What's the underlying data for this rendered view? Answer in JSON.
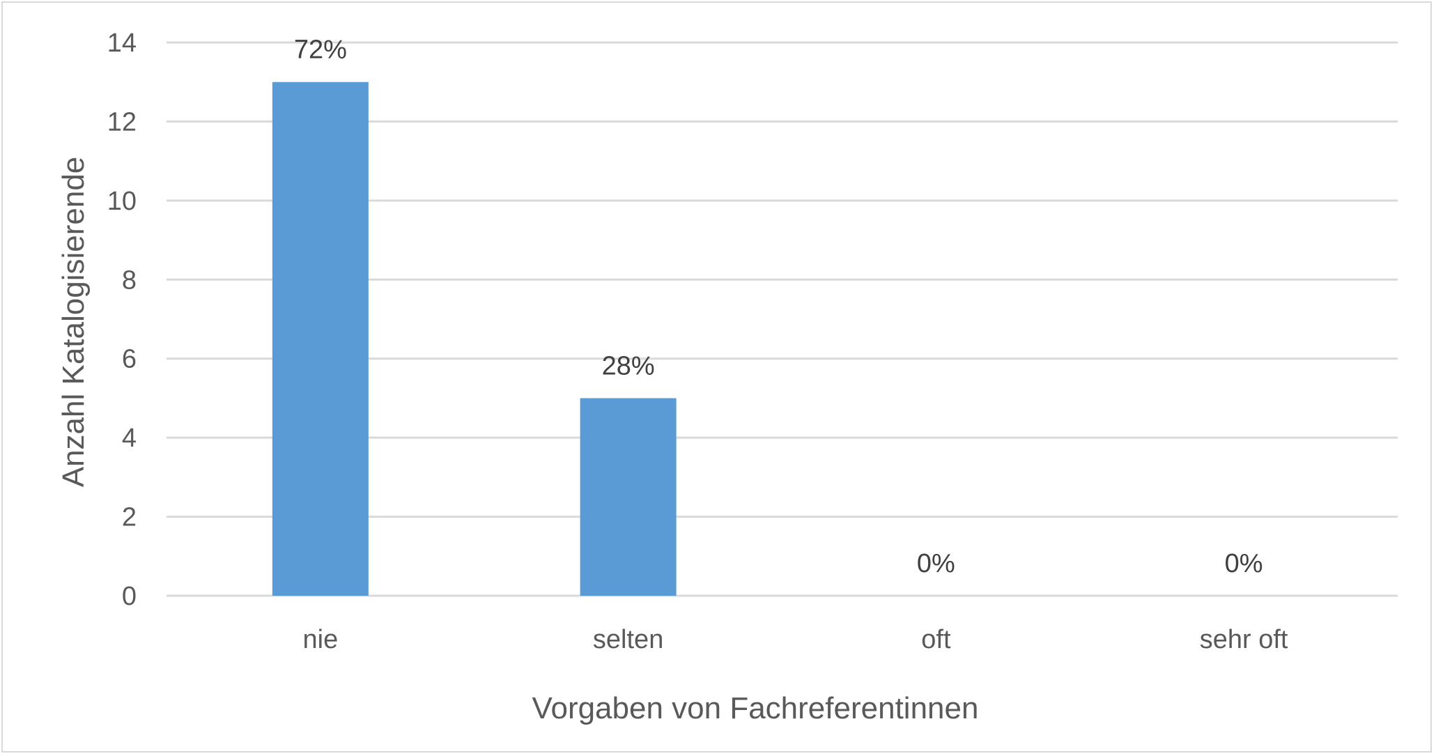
{
  "chart_data": {
    "type": "bar",
    "title": "",
    "xlabel": "Vorgaben von Fachreferentinnen",
    "ylabel": "Anzahl Katalogisierende",
    "categories": [
      "nie",
      "selten",
      "oft",
      "sehr oft"
    ],
    "values": [
      13,
      5,
      0,
      0
    ],
    "data_labels": [
      "72%",
      "28%",
      "0%",
      "0%"
    ],
    "ylim": [
      0,
      14
    ],
    "yticks": [
      "0",
      "2",
      "4",
      "6",
      "8",
      "10",
      "12",
      "14"
    ],
    "grid": true,
    "legend": "none",
    "colors": {
      "bar": "#5b9bd5",
      "grid": "#d9d9d9",
      "text": "#595959",
      "label": "#404040"
    }
  }
}
